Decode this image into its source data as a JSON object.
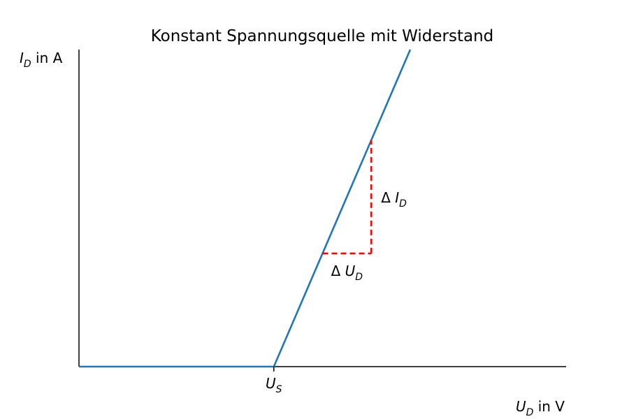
{
  "chart_data": {
    "type": "line",
    "title": "Konstant Spannungsquelle mit Widerstand",
    "ylabel": {
      "sym": "I",
      "sub": "D",
      "unit": " in A"
    },
    "xlabel": {
      "sym": "U",
      "sub": "D",
      "unit": " in V"
    },
    "xlim": [
      0,
      1
    ],
    "ylim": [
      0,
      1
    ],
    "x_ticks": [
      {
        "value": 0.4,
        "sym": "U",
        "sub": "S"
      }
    ],
    "series": [
      {
        "color": "#1f77b4",
        "points": [
          [
            0,
            0
          ],
          [
            0.4,
            0
          ],
          [
            0.68,
            1.0
          ]
        ]
      }
    ],
    "slope_triangle": {
      "color": "#ff0000",
      "x1": 0.5,
      "y1": 0.357,
      "x2": 0.6,
      "y2": 0.714,
      "dx_label": {
        "prefix": "Δ",
        "sym": "U",
        "sub": "D"
      },
      "dy_label": {
        "prefix": "Δ",
        "sym": "I",
        "sub": "D"
      }
    },
    "grid": false,
    "spines": [
      "left",
      "bottom"
    ]
  }
}
